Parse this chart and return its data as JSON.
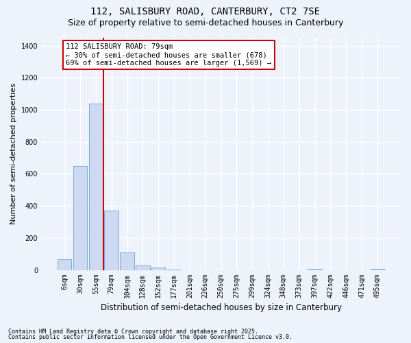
{
  "title1": "112, SALISBURY ROAD, CANTERBURY, CT2 7SE",
  "title2": "Size of property relative to semi-detached houses in Canterbury",
  "xlabel": "Distribution of semi-detached houses by size in Canterbury",
  "ylabel": "Number of semi-detached properties",
  "categories": [
    "6sqm",
    "30sqm",
    "55sqm",
    "79sqm",
    "104sqm",
    "128sqm",
    "152sqm",
    "177sqm",
    "201sqm",
    "226sqm",
    "250sqm",
    "275sqm",
    "299sqm",
    "324sqm",
    "348sqm",
    "373sqm",
    "397sqm",
    "422sqm",
    "446sqm",
    "471sqm",
    "495sqm"
  ],
  "values": [
    65,
    650,
    1040,
    370,
    110,
    30,
    15,
    3,
    0,
    0,
    0,
    0,
    0,
    0,
    0,
    0,
    5,
    0,
    0,
    0,
    5
  ],
  "bar_color": "#ccd9f0",
  "bar_edge_color": "#7aaad4",
  "vline_x_index": 2.5,
  "vline_color": "#cc0000",
  "annotation_text": "112 SALISBURY ROAD: 79sqm\n← 30% of semi-detached houses are smaller (678)\n69% of semi-detached houses are larger (1,569) →",
  "annotation_box_color": "#ffffff",
  "annotation_box_edge": "#cc0000",
  "ylim": [
    0,
    1450
  ],
  "yticks": [
    0,
    200,
    400,
    600,
    800,
    1000,
    1200,
    1400
  ],
  "footer1": "Contains HM Land Registry data © Crown copyright and database right 2025.",
  "footer2": "Contains public sector information licensed under the Open Government Licence v3.0.",
  "bg_color": "#eef2fb",
  "grid_color": "#ffffff",
  "title_fontsize": 10,
  "subtitle_fontsize": 9,
  "tick_fontsize": 7,
  "ylabel_fontsize": 8,
  "xlabel_fontsize": 8.5,
  "footer_fontsize": 6,
  "annot_fontsize": 7.5
}
